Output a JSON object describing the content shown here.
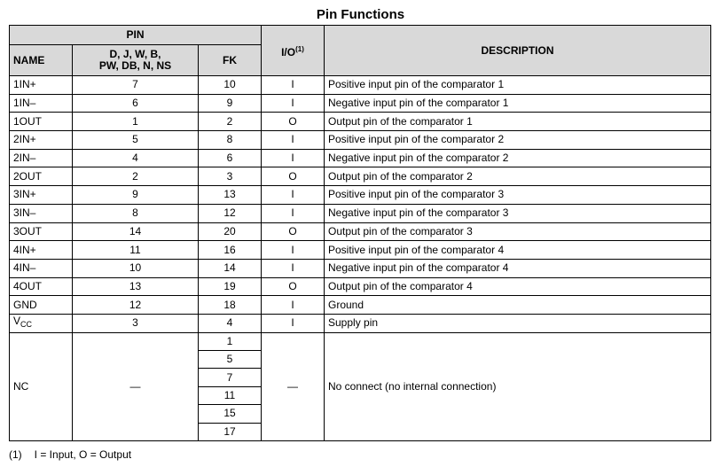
{
  "title": "Pin Functions",
  "headers": {
    "pin": "PIN",
    "name": "NAME",
    "pkg1_line1": "D, J, W, B,",
    "pkg1_line2": "PW, DB, N, NS",
    "fk": "FK",
    "io": "I/O",
    "io_note": "(1)",
    "description": "DESCRIPTION"
  },
  "rows": [
    {
      "name": "1IN+",
      "pkg": "7",
      "fk": "10",
      "io": "I",
      "desc": "Positive input pin of the comparator 1"
    },
    {
      "name": "1IN–",
      "pkg": "6",
      "fk": "9",
      "io": "I",
      "desc": "Negative input pin of the comparator 1"
    },
    {
      "name": "1OUT",
      "pkg": "1",
      "fk": "2",
      "io": "O",
      "desc": "Output pin of the comparator 1"
    },
    {
      "name": "2IN+",
      "pkg": "5",
      "fk": "8",
      "io": "I",
      "desc": "Positive input pin of the comparator 2"
    },
    {
      "name": "2IN–",
      "pkg": "4",
      "fk": "6",
      "io": "I",
      "desc": "Negative input pin of the comparator 2"
    },
    {
      "name": "2OUT",
      "pkg": "2",
      "fk": "3",
      "io": "O",
      "desc": "Output pin of the comparator 2"
    },
    {
      "name": "3IN+",
      "pkg": "9",
      "fk": "13",
      "io": "I",
      "desc": "Positive input pin of the comparator 3"
    },
    {
      "name": "3IN–",
      "pkg": "8",
      "fk": "12",
      "io": "I",
      "desc": "Negative input pin of the comparator 3"
    },
    {
      "name": "3OUT",
      "pkg": "14",
      "fk": "20",
      "io": "O",
      "desc": "Output pin of the comparator 3"
    },
    {
      "name": "4IN+",
      "pkg": "11",
      "fk": "16",
      "io": "I",
      "desc": "Positive input pin of the comparator 4"
    },
    {
      "name": "4IN–",
      "pkg": "10",
      "fk": "14",
      "io": "I",
      "desc": "Negative input pin of the comparator 4"
    },
    {
      "name": "4OUT",
      "pkg": "13",
      "fk": "19",
      "io": "O",
      "desc": "Output pin of the comparator 4"
    },
    {
      "name": "GND",
      "pkg": "12",
      "fk": "18",
      "io": "I",
      "desc": "Ground"
    }
  ],
  "vcc": {
    "name_main": "V",
    "name_sub": "CC",
    "pkg": "3",
    "fk": "4",
    "io": "I",
    "desc": "Supply pin"
  },
  "nc": {
    "name": "NC",
    "pkg": "—",
    "fk": [
      "1",
      "5",
      "7",
      "11",
      "15",
      "17"
    ],
    "io": "—",
    "desc": "No connect (no internal connection)"
  },
  "footnote": {
    "num": "(1)",
    "text": "I = Input, O = Output"
  }
}
